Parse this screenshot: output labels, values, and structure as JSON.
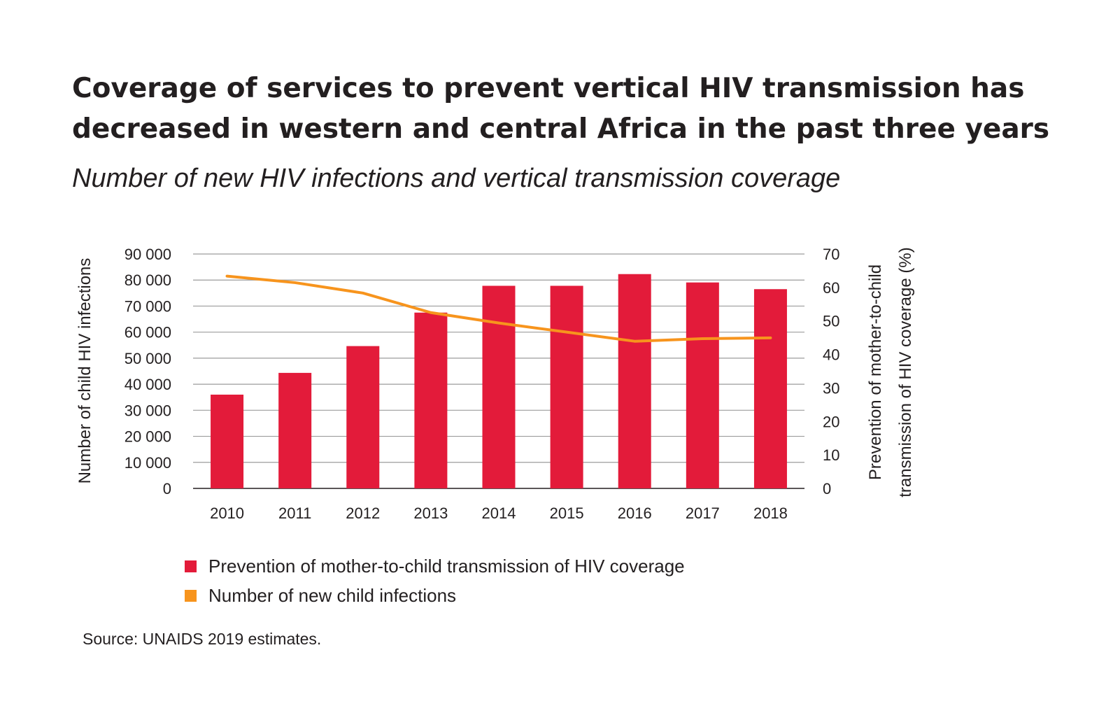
{
  "title": "Coverage of services to prevent vertical HIV transmission has decreased in western and central Africa in the past three years",
  "subtitle": "Number of new HIV infections and vertical transmission coverage",
  "source": "Source: UNAIDS 2019 estimates.",
  "chart_data": {
    "type": "bar",
    "categories": [
      "2010",
      "2011",
      "2012",
      "2013",
      "2014",
      "2015",
      "2016",
      "2017",
      "2018"
    ],
    "series": [
      {
        "name": "Prevention of mother-to-child transmission of HIV coverage",
        "type": "bar",
        "axis": "right",
        "color": "#e31b3a",
        "values": [
          28,
          34.5,
          42.5,
          52.5,
          60.5,
          60.5,
          64,
          61.5,
          59.5
        ]
      },
      {
        "name": "Number of new child infections",
        "type": "line",
        "axis": "left",
        "color": "#f7941d",
        "values": [
          81500,
          79000,
          75000,
          67500,
          63500,
          60000,
          56500,
          57500,
          57800
        ]
      }
    ],
    "y_left": {
      "label": "Number of child HIV infections",
      "lim": [
        0,
        90000
      ],
      "ticks": [
        "0",
        "10 000",
        "20 000",
        "30 000",
        "40 000",
        "50 000",
        "60 000",
        "70 000",
        "80 000",
        "90 000"
      ]
    },
    "y_right": {
      "label_lines": [
        "Prevention of mother-to-child",
        "transmission of HIV coverage (%)"
      ],
      "lim": [
        0,
        70
      ],
      "ticks": [
        "0",
        "10",
        "20",
        "30",
        "40",
        "50",
        "60",
        "70"
      ]
    },
    "grid": true,
    "legend": "bottom"
  }
}
